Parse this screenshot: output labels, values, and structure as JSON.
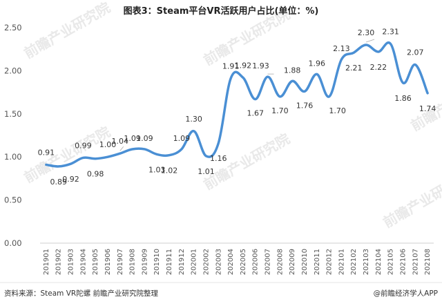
{
  "title": "图表3：Steam平台VR活跃用户占比(单位：%)",
  "footer": {
    "source": "资料来源：Steam VR陀螺 前瞻产业研究院整理",
    "brand": "@前瞻经济学人APP"
  },
  "watermark": "前瞻产业研究院",
  "colors": {
    "line": "#4a8fd4",
    "axis": "#cfcfcf"
  },
  "chart_data": {
    "type": "line",
    "title": "图表3：Steam平台VR活跃用户占比(单位：%)",
    "xlabel": "",
    "ylabel": "",
    "ylim": [
      0,
      2.5
    ],
    "yticks": [
      "0.00",
      "0.50",
      "1.00",
      "1.50",
      "2.00",
      "2.50"
    ],
    "grid": false,
    "categories": [
      "201901",
      "201902",
      "201903",
      "201904",
      "201905",
      "201906",
      "201907",
      "201908",
      "201909",
      "201910",
      "201911",
      "201912",
      "202001",
      "202002",
      "202003",
      "202004",
      "202005",
      "202006",
      "202007",
      "202008",
      "202009",
      "202010",
      "202011",
      "202012",
      "202101",
      "202102",
      "202103",
      "202104",
      "202105",
      "202106",
      "202107",
      "202108"
    ],
    "series": [
      {
        "values": [
          0.91,
          0.89,
          0.92,
          0.99,
          0.98,
          1.0,
          1.04,
          1.09,
          1.09,
          1.03,
          1.02,
          1.09,
          1.3,
          1.01,
          1.16,
          1.91,
          1.92,
          1.67,
          1.93,
          1.7,
          1.88,
          1.76,
          1.96,
          1.7,
          2.13,
          2.21,
          2.3,
          2.22,
          2.31,
          1.86,
          2.07,
          1.74
        ],
        "labels": [
          "0.91",
          "0.89",
          "0.92",
          "0.99",
          "0.98",
          "1.00",
          "1.04",
          "1.09",
          "1.09",
          "1.03",
          "1.02",
          "1.09",
          "1.30",
          "1.01",
          "1.16",
          "1.91",
          "1.92",
          "1.67",
          "1.93",
          "1.70",
          "1.88",
          "1.76",
          "1.96",
          "1.70",
          "2.13",
          "2.21",
          "2.30",
          "2.22",
          "2.31",
          "1.86",
          "2.07",
          "1.74"
        ]
      }
    ]
  }
}
